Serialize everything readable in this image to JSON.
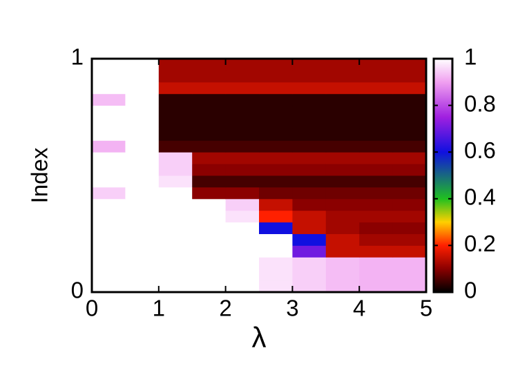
{
  "chart_data": {
    "type": "heatmap",
    "xlabel": "λ",
    "ylabel": "Index",
    "x": [
      0,
      0.5,
      1,
      1.5,
      2,
      2.5,
      3,
      3.5,
      4,
      4.5,
      5
    ],
    "y": [
      0,
      0.05,
      0.1,
      0.15,
      0.2,
      0.25,
      0.3,
      0.35,
      0.4,
      0.45,
      0.5,
      0.55,
      0.6,
      0.65,
      0.7,
      0.75,
      0.8,
      0.85,
      0.9,
      0.95,
      1
    ],
    "z": [
      [
        1,
        1,
        1,
        1,
        1,
        0.97,
        0.95,
        0.93,
        0.92,
        0.92
      ],
      [
        1,
        1,
        1,
        1,
        1,
        0.97,
        0.95,
        0.93,
        0.92,
        0.92
      ],
      [
        1,
        1,
        1,
        1,
        1,
        0.97,
        0.95,
        0.93,
        0.92,
        0.92
      ],
      [
        1,
        1,
        1,
        1,
        1,
        1,
        0.7,
        0.15,
        0.15,
        0.15
      ],
      [
        1,
        1,
        1,
        1,
        1,
        1,
        0.6,
        0.15,
        0.12,
        0.12
      ],
      [
        1,
        1,
        1,
        1,
        1,
        0.6,
        0.15,
        0.12,
        0.1,
        0.1
      ],
      [
        1,
        1,
        1,
        1,
        0.97,
        0.2,
        0.15,
        0.12,
        0.12,
        0.12
      ],
      [
        1,
        1,
        1,
        1,
        0.95,
        0.15,
        0.1,
        0.1,
        0.1,
        0.1
      ],
      [
        0.95,
        1,
        1,
        0.1,
        0.1,
        0.08,
        0.08,
        0.08,
        0.08,
        0.08
      ],
      [
        1,
        1,
        0.97,
        0.05,
        0.05,
        0.05,
        0.05,
        0.05,
        0.05,
        0.05
      ],
      [
        1,
        1,
        0.95,
        0.1,
        0.1,
        0.1,
        0.1,
        0.1,
        0.1,
        0.1
      ],
      [
        1,
        1,
        0.95,
        0.12,
        0.12,
        0.12,
        0.12,
        0.12,
        0.12,
        0.12
      ],
      [
        0.92,
        1,
        0.05,
        0.05,
        0.05,
        0.05,
        0.05,
        0.05,
        0.05,
        0.05
      ],
      [
        1,
        1,
        0.03,
        0.03,
        0.03,
        0.03,
        0.03,
        0.03,
        0.03,
        0.03
      ],
      [
        1,
        1,
        0.03,
        0.03,
        0.03,
        0.03,
        0.03,
        0.03,
        0.03,
        0.03
      ],
      [
        1,
        1,
        0.03,
        0.03,
        0.03,
        0.03,
        0.03,
        0.03,
        0.03,
        0.03
      ],
      [
        0.93,
        1,
        0.03,
        0.03,
        0.03,
        0.03,
        0.03,
        0.03,
        0.03,
        0.03
      ],
      [
        1,
        1,
        0.15,
        0.15,
        0.15,
        0.15,
        0.15,
        0.15,
        0.15,
        0.15
      ],
      [
        1,
        1,
        0.12,
        0.12,
        0.12,
        0.12,
        0.12,
        0.12,
        0.12,
        0.12
      ],
      [
        1,
        1,
        0.12,
        0.12,
        0.12,
        0.12,
        0.12,
        0.12,
        0.12,
        0.12
      ]
    ],
    "xlim": [
      0,
      5
    ],
    "xticks": [
      0,
      1,
      2,
      3,
      4,
      5
    ],
    "ylim": [
      0,
      1
    ],
    "yticks": [
      0,
      1
    ],
    "zlim": [
      0,
      1
    ],
    "zticks": [
      0,
      0.2,
      0.4,
      0.6,
      0.8,
      1
    ],
    "colorscale": [
      [
        0,
        "#000000"
      ],
      [
        0.1,
        "#8b0000"
      ],
      [
        0.2,
        "#ff2000"
      ],
      [
        0.3,
        "#ffd000"
      ],
      [
        0.4,
        "#20c020"
      ],
      [
        0.6,
        "#1010e0"
      ],
      [
        0.75,
        "#a020e0"
      ],
      [
        0.9,
        "#f0a0f0"
      ],
      [
        1,
        "#ffffff"
      ]
    ]
  }
}
